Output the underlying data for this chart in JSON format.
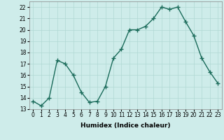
{
  "x": [
    0,
    1,
    2,
    3,
    4,
    5,
    6,
    7,
    8,
    9,
    10,
    11,
    12,
    13,
    14,
    15,
    16,
    17,
    18,
    19,
    20,
    21,
    22,
    23
  ],
  "y": [
    13.7,
    13.3,
    14.0,
    17.3,
    17.0,
    16.0,
    14.5,
    13.6,
    13.7,
    15.0,
    17.5,
    18.3,
    20.0,
    20.0,
    20.3,
    21.0,
    22.0,
    21.8,
    22.0,
    20.7,
    19.5,
    17.5,
    16.3,
    15.3
  ],
  "line_color": "#1a6b5a",
  "marker": "+",
  "markersize": 4,
  "linewidth": 1.0,
  "markeredgewidth": 1.0,
  "xlabel": "Humidex (Indice chaleur)",
  "xlim": [
    -0.5,
    23.5
  ],
  "ylim": [
    13,
    22.5
  ],
  "yticks": [
    13,
    14,
    15,
    16,
    17,
    18,
    19,
    20,
    21,
    22
  ],
  "xticks": [
    0,
    1,
    2,
    3,
    4,
    5,
    6,
    7,
    8,
    9,
    10,
    11,
    12,
    13,
    14,
    15,
    16,
    17,
    18,
    19,
    20,
    21,
    22,
    23
  ],
  "bg_color": "#ceecea",
  "grid_color": "#b0d8d4",
  "label_fontsize": 6.5,
  "tick_fontsize": 5.5
}
